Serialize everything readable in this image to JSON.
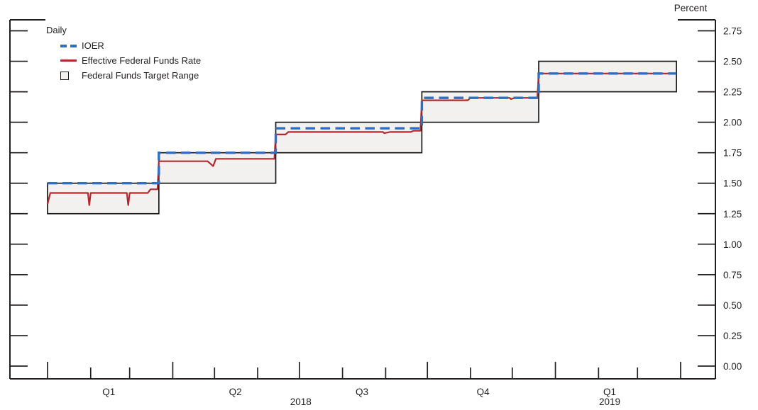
{
  "legend": {
    "title": "Daily",
    "items": [
      {
        "label": "IOER"
      },
      {
        "label": "Effective Federal Funds Rate"
      },
      {
        "label": "Federal Funds Target Range"
      }
    ]
  },
  "chart_data": {
    "type": "line",
    "frequency_note": "Daily",
    "unit_label": "Percent",
    "colors": {
      "ioer": "#2e6fc4",
      "effr": "#b2282e",
      "range_fill": "#f2f1ef",
      "range_border": "#1a1a1a",
      "axis": "#231f20"
    },
    "y_axis": {
      "ylim": [
        0.0,
        2.75
      ],
      "tick_step": 0.25,
      "tick_labels": [
        "0.00",
        "0.25",
        "0.50",
        "0.75",
        "1.00",
        "1.25",
        "1.50",
        "1.75",
        "2.00",
        "2.25",
        "2.50",
        "2.75"
      ],
      "labels_side": "right",
      "grid": false
    },
    "x_axis": {
      "start": "2018-01-01",
      "end": "2019-04-01",
      "minor_ticks": "months",
      "major_ticks": "quarters",
      "quarter_labels": [
        {
          "label": "Q1",
          "date": "2018-02-14"
        },
        {
          "label": "Q2",
          "date": "2018-05-16"
        },
        {
          "label": "Q3",
          "date": "2018-08-15"
        },
        {
          "label": "Q4",
          "date": "2018-11-10"
        },
        {
          "label": "Q1",
          "date": "2019-02-09"
        }
      ],
      "year_labels": [
        {
          "label": "2018",
          "date": "2018-07-02"
        },
        {
          "label": "2019",
          "date": "2019-02-09"
        }
      ]
    },
    "series": [
      {
        "name": "Federal Funds Target Range",
        "kind": "step-range",
        "steps": [
          {
            "from": "2018-01-01",
            "to": "2018-03-22",
            "low": 1.25,
            "high": 1.5
          },
          {
            "from": "2018-03-22",
            "to": "2018-06-14",
            "low": 1.5,
            "high": 1.75
          },
          {
            "from": "2018-06-14",
            "to": "2018-09-27",
            "low": 1.75,
            "high": 2.0
          },
          {
            "from": "2018-09-27",
            "to": "2018-12-20",
            "low": 2.0,
            "high": 2.25
          },
          {
            "from": "2018-12-20",
            "to": "2019-03-29",
            "low": 2.25,
            "high": 2.5
          }
        ]
      },
      {
        "name": "IOER",
        "kind": "step-line",
        "steps": [
          {
            "from": "2018-01-01",
            "to": "2018-03-22",
            "value": 1.5
          },
          {
            "from": "2018-03-22",
            "to": "2018-06-14",
            "value": 1.75
          },
          {
            "from": "2018-06-14",
            "to": "2018-09-27",
            "value": 1.95
          },
          {
            "from": "2018-09-27",
            "to": "2018-12-20",
            "value": 2.2
          },
          {
            "from": "2018-12-20",
            "to": "2019-03-29",
            "value": 2.4
          }
        ]
      },
      {
        "name": "Effective Federal Funds Rate",
        "kind": "line",
        "points": [
          [
            "2018-01-01",
            1.33
          ],
          [
            "2018-01-03",
            1.42
          ],
          [
            "2018-01-30",
            1.42
          ],
          [
            "2018-01-31",
            1.32
          ],
          [
            "2018-02-01",
            1.42
          ],
          [
            "2018-02-27",
            1.42
          ],
          [
            "2018-02-28",
            1.32
          ],
          [
            "2018-03-01",
            1.42
          ],
          [
            "2018-03-14",
            1.42
          ],
          [
            "2018-03-16",
            1.45
          ],
          [
            "2018-03-21",
            1.45
          ],
          [
            "2018-03-22",
            1.68
          ],
          [
            "2018-04-26",
            1.68
          ],
          [
            "2018-04-30",
            1.64
          ],
          [
            "2018-05-02",
            1.7
          ],
          [
            "2018-06-13",
            1.7
          ],
          [
            "2018-06-14",
            1.9
          ],
          [
            "2018-06-21",
            1.9
          ],
          [
            "2018-06-23",
            1.92
          ],
          [
            "2018-08-30",
            1.92
          ],
          [
            "2018-08-31",
            1.91
          ],
          [
            "2018-09-04",
            1.92
          ],
          [
            "2018-09-19",
            1.92
          ],
          [
            "2018-09-21",
            1.93
          ],
          [
            "2018-09-26",
            1.93
          ],
          [
            "2018-09-27",
            2.18
          ],
          [
            "2018-10-30",
            2.18
          ],
          [
            "2018-11-01",
            2.2
          ],
          [
            "2018-11-29",
            2.2
          ],
          [
            "2018-11-30",
            2.19
          ],
          [
            "2018-12-03",
            2.2
          ],
          [
            "2018-12-19",
            2.2
          ],
          [
            "2018-12-20",
            2.4
          ],
          [
            "2019-03-29",
            2.4
          ]
        ]
      }
    ]
  }
}
